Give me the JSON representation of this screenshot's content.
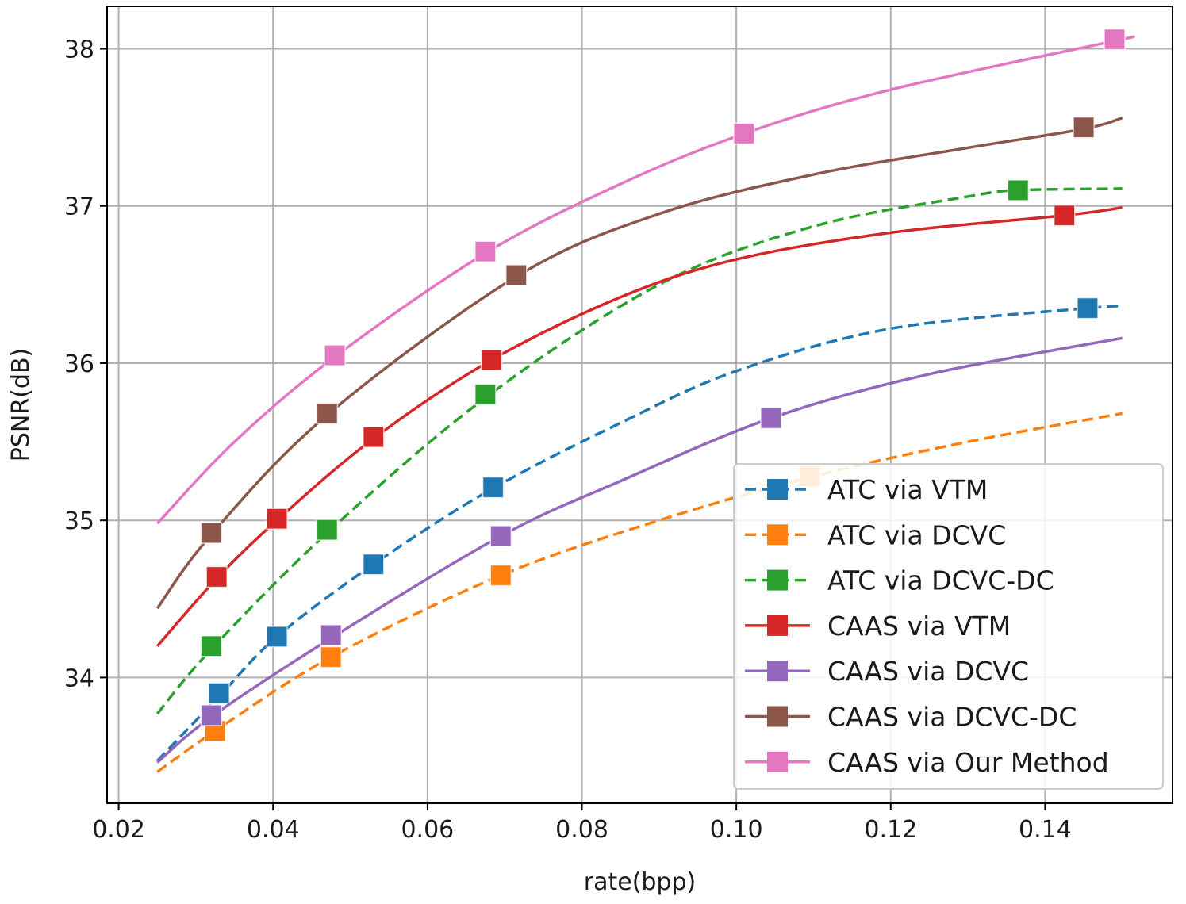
{
  "chart_data": {
    "type": "line",
    "title": "",
    "xlabel": "rate(bpp)",
    "ylabel": "PSNR(dB)",
    "xlim": [
      0.0185,
      0.1565
    ],
    "ylim": [
      33.2,
      38.27
    ],
    "xticks": [
      0.02,
      0.04,
      0.06,
      0.08,
      0.1,
      0.12,
      0.14
    ],
    "xtick_labels": [
      "0.02",
      "0.04",
      "0.06",
      "0.08",
      "0.10",
      "0.12",
      "0.14"
    ],
    "yticks": [
      34,
      35,
      36,
      37,
      38
    ],
    "ytick_labels": [
      "34",
      "35",
      "36",
      "37",
      "38"
    ],
    "grid": true,
    "legend_position": "lower-right",
    "series": [
      {
        "name": "ATC via VTM",
        "color": "#1f77b4",
        "dashed": true,
        "curve_x": [
          0.025,
          0.033,
          0.0405,
          0.053,
          0.068,
          0.085,
          0.1,
          0.12,
          0.1455,
          0.15
        ],
        "curve_y": [
          33.47,
          33.88,
          34.26,
          34.72,
          35.19,
          35.62,
          35.95,
          36.22,
          36.35,
          36.36
        ],
        "markers_x": [
          0.033,
          0.0405,
          0.053,
          0.0685,
          0.1455
        ],
        "markers_y": [
          33.9,
          34.26,
          34.72,
          35.21,
          36.35
        ]
      },
      {
        "name": "ATC via DCVC",
        "color": "#ff7f0e",
        "dashed": true,
        "curve_x": [
          0.025,
          0.0325,
          0.0475,
          0.0695,
          0.09,
          0.11,
          0.13,
          0.15
        ],
        "curve_y": [
          33.4,
          33.66,
          34.13,
          34.65,
          35.0,
          35.28,
          35.5,
          35.68
        ],
        "markers_x": [
          0.0325,
          0.0475,
          0.0695,
          0.1095
        ],
        "markers_y": [
          33.66,
          34.13,
          34.65,
          35.28
        ]
      },
      {
        "name": "ATC via DCVC-DC",
        "color": "#2ca02c",
        "dashed": true,
        "curve_x": [
          0.025,
          0.032,
          0.047,
          0.0675,
          0.09,
          0.11,
          0.13,
          0.1365,
          0.15
        ],
        "curve_y": [
          33.77,
          34.18,
          34.92,
          35.78,
          36.5,
          36.87,
          37.06,
          37.1,
          37.11
        ],
        "markers_x": [
          0.032,
          0.047,
          0.0675,
          0.1365
        ],
        "markers_y": [
          34.2,
          34.94,
          35.8,
          37.1
        ]
      },
      {
        "name": "CAAS via VTM",
        "color": "#d62728",
        "dashed": false,
        "curve_x": [
          0.025,
          0.0327,
          0.0405,
          0.053,
          0.0683,
          0.085,
          0.1,
          0.12,
          0.1425,
          0.15
        ],
        "curve_y": [
          34.2,
          34.63,
          35.0,
          35.52,
          36.02,
          36.42,
          36.66,
          36.83,
          36.94,
          36.99
        ],
        "markers_x": [
          0.0327,
          0.0405,
          0.053,
          0.0683,
          0.1425
        ],
        "markers_y": [
          34.64,
          35.01,
          35.53,
          36.02,
          36.94
        ]
      },
      {
        "name": "CAAS via DCVC",
        "color": "#9467bd",
        "dashed": false,
        "curve_x": [
          0.025,
          0.032,
          0.0475,
          0.0695,
          0.085,
          0.1045,
          0.125,
          0.15
        ],
        "curve_y": [
          33.46,
          33.75,
          34.25,
          34.9,
          35.25,
          35.65,
          35.93,
          36.16
        ],
        "markers_x": [
          0.032,
          0.0475,
          0.0695,
          0.1045
        ],
        "markers_y": [
          33.76,
          34.27,
          34.9,
          35.65
        ]
      },
      {
        "name": "CAAS via DCVC-DC",
        "color": "#8c564b",
        "dashed": false,
        "curve_x": [
          0.025,
          0.032,
          0.047,
          0.0715,
          0.09,
          0.11,
          0.13,
          0.145,
          0.15
        ],
        "curve_y": [
          34.44,
          34.91,
          35.67,
          36.55,
          36.95,
          37.2,
          37.37,
          37.49,
          37.56
        ],
        "markers_x": [
          0.032,
          0.047,
          0.0715,
          0.145
        ],
        "markers_y": [
          34.92,
          35.68,
          36.56,
          37.5
        ]
      },
      {
        "name": "CAAS via Our Method",
        "color": "#e377c2",
        "dashed": false,
        "curve_x": [
          0.025,
          0.035,
          0.048,
          0.0675,
          0.085,
          0.101,
          0.12,
          0.149,
          0.15
        ],
        "curve_y": [
          34.98,
          35.5,
          36.04,
          36.7,
          37.14,
          37.46,
          37.74,
          38.05,
          38.06
        ],
        "markers_x": [
          0.048,
          0.0675,
          0.101,
          0.149
        ],
        "markers_y": [
          36.05,
          36.71,
          37.46,
          38.06
        ]
      }
    ]
  }
}
